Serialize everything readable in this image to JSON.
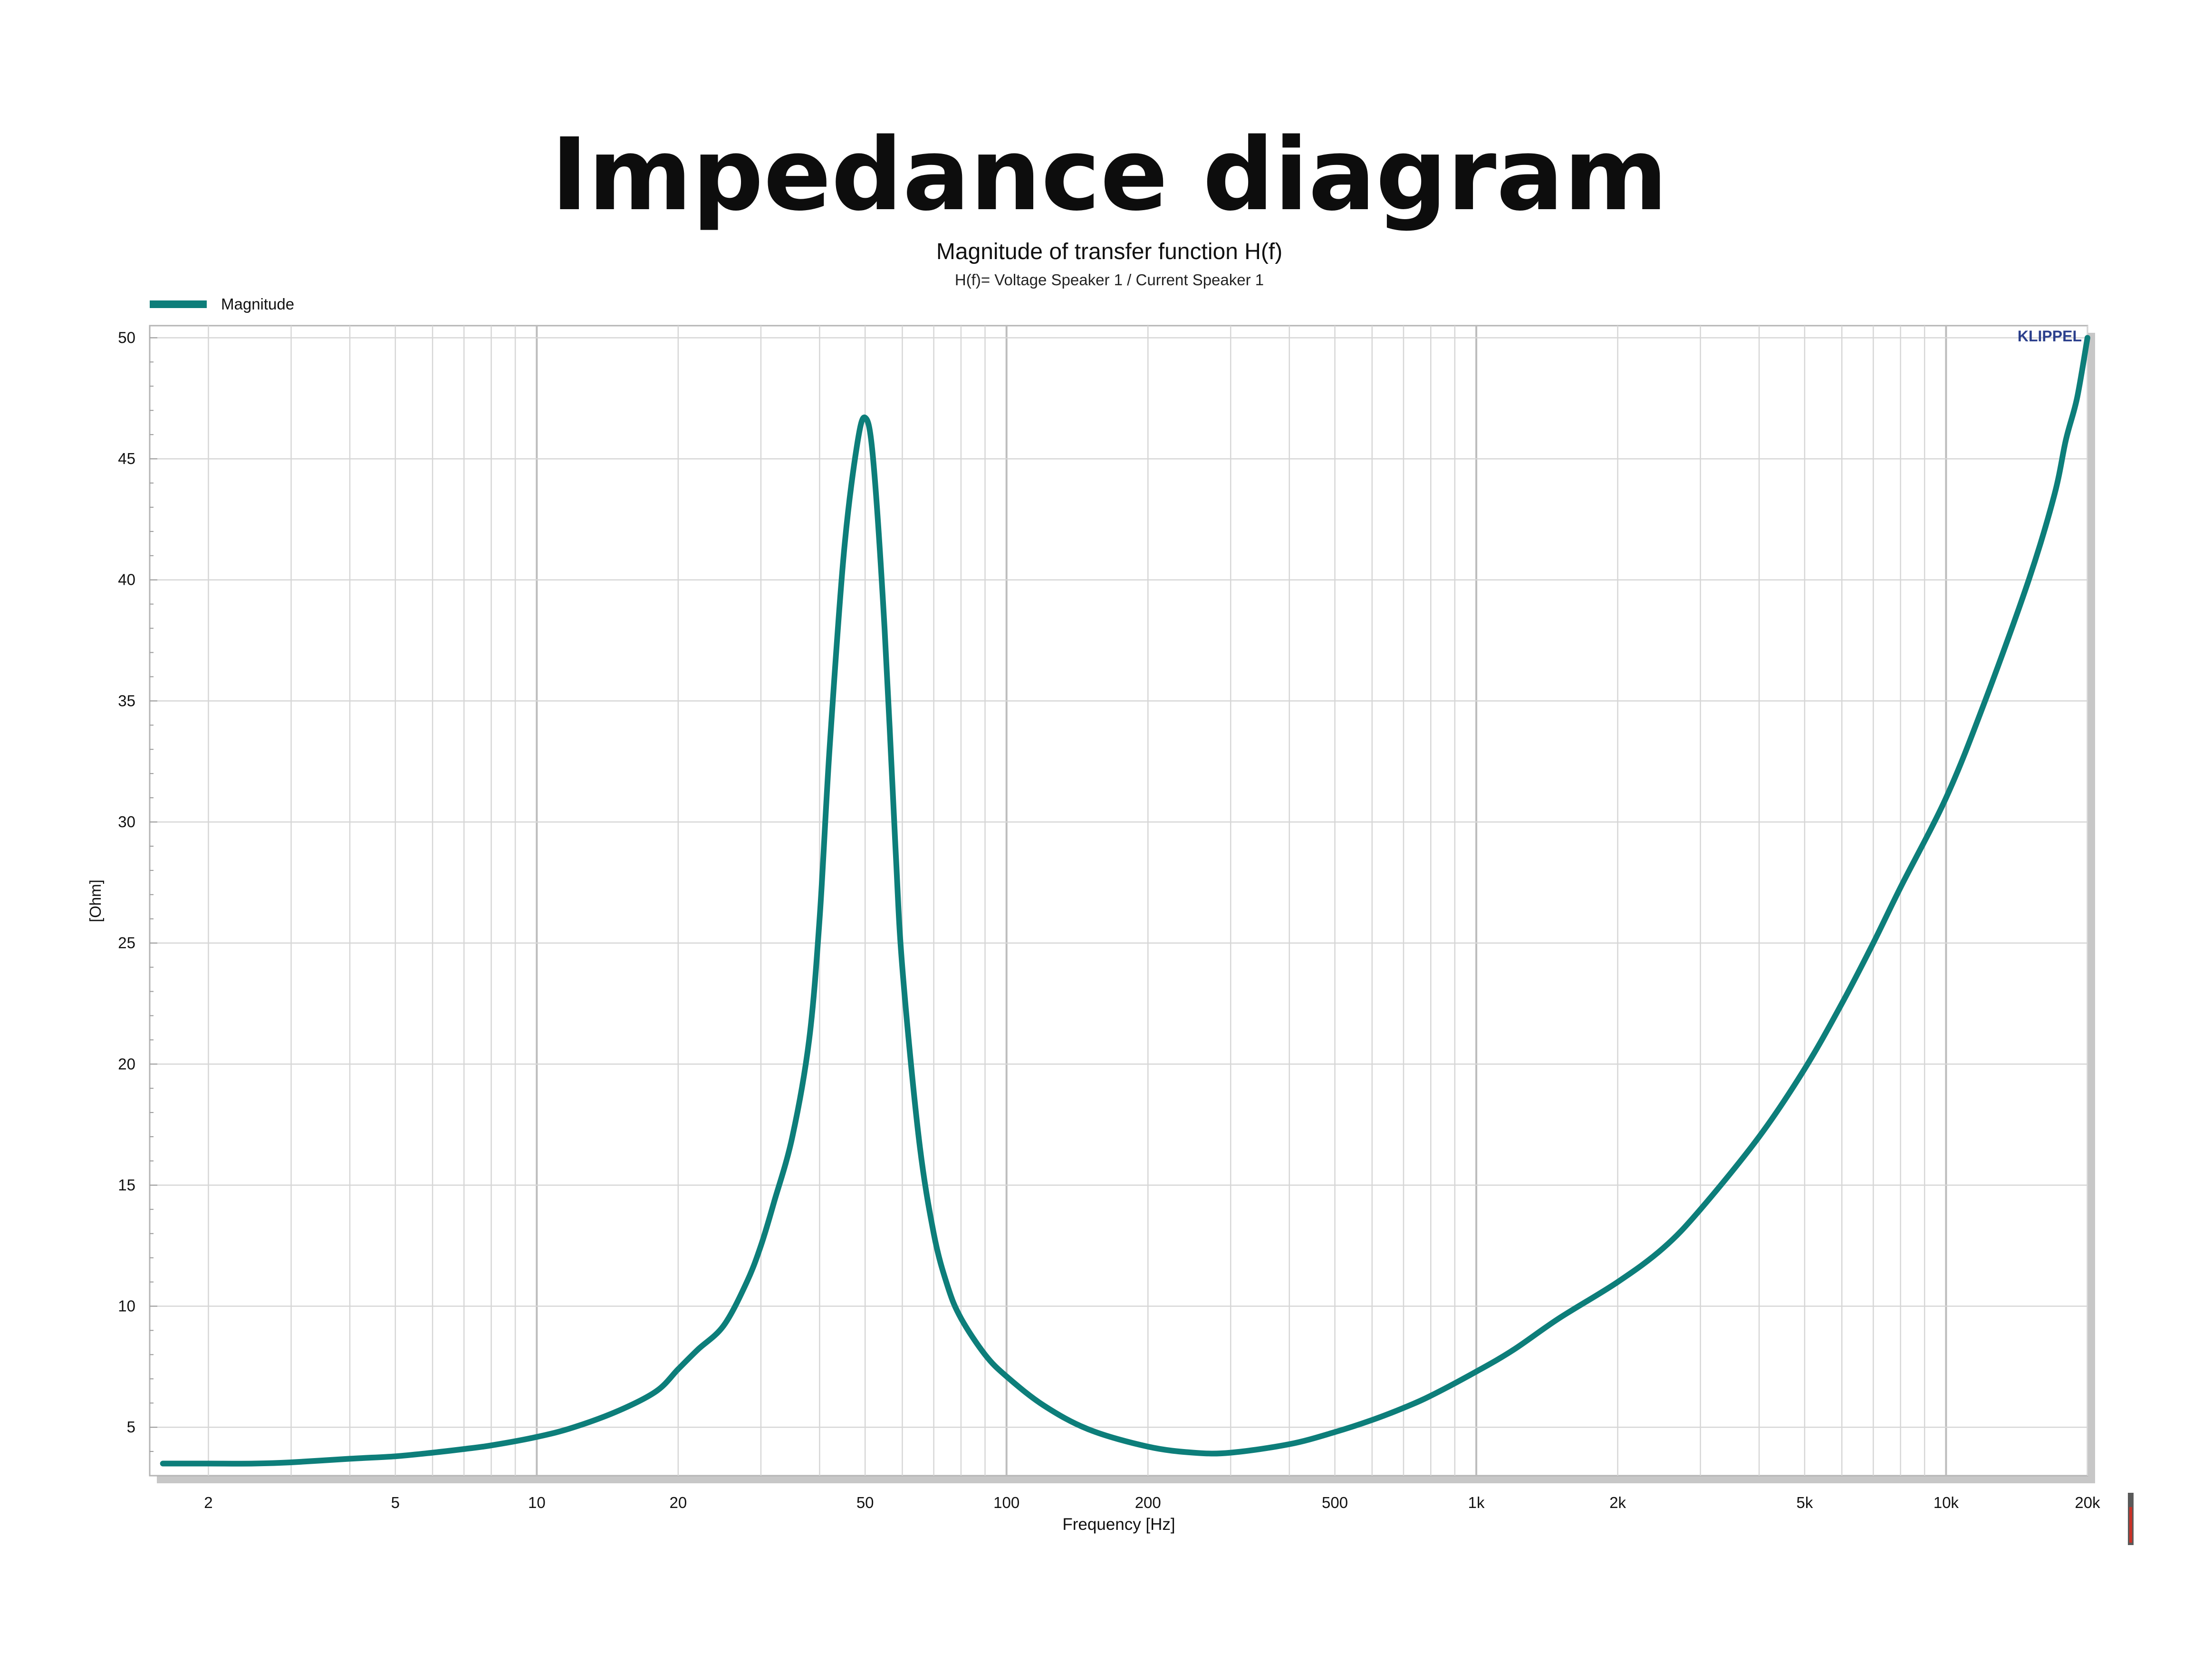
{
  "page": {
    "title": "Impedance diagram"
  },
  "colors": {
    "curve": "#0d7e7a",
    "grid": "#d6d6d6",
    "brand": "#2b3f8c",
    "background": "#ffffff"
  },
  "chart_data": {
    "type": "line",
    "title": "Magnitude of transfer function H(f)",
    "subtitle": "H(f)= Voltage Speaker 1 / Current Speaker 1",
    "xlabel": "Frequency [Hz]",
    "ylabel": "[Ohm]",
    "x_scale": "log",
    "xlim": [
      1.5,
      20000
    ],
    "ylim": [
      3,
      50.5
    ],
    "grid": true,
    "legend": {
      "position": "top-left",
      "entries": [
        "Magnitude"
      ]
    },
    "brand_label": "KLIPPEL",
    "x_ticks": [
      {
        "value": 2,
        "label": "2"
      },
      {
        "value": 5,
        "label": "5"
      },
      {
        "value": 10,
        "label": "10"
      },
      {
        "value": 20,
        "label": "20"
      },
      {
        "value": 50,
        "label": "50"
      },
      {
        "value": 100,
        "label": "100"
      },
      {
        "value": 200,
        "label": "200"
      },
      {
        "value": 500,
        "label": "500"
      },
      {
        "value": 1000,
        "label": "1k"
      },
      {
        "value": 2000,
        "label": "2k"
      },
      {
        "value": 5000,
        "label": "5k"
      },
      {
        "value": 10000,
        "label": "10k"
      },
      {
        "value": 20000,
        "label": "20k"
      }
    ],
    "y_ticks": [
      {
        "value": 5,
        "label": "5"
      },
      {
        "value": 10,
        "label": "10"
      },
      {
        "value": 15,
        "label": "15"
      },
      {
        "value": 20,
        "label": "20"
      },
      {
        "value": 25,
        "label": "25"
      },
      {
        "value": 30,
        "label": "30"
      },
      {
        "value": 35,
        "label": "35"
      },
      {
        "value": 40,
        "label": "40"
      },
      {
        "value": 45,
        "label": "45"
      },
      {
        "value": 50,
        "label": "50"
      }
    ],
    "series": [
      {
        "name": "Magnitude",
        "color": "#0d7e7a",
        "x": [
          1.6,
          2,
          2.5,
          3,
          4,
          5,
          6,
          7,
          8,
          10,
          12,
          15,
          18,
          20,
          22,
          25,
          28,
          30,
          32,
          35,
          38,
          40,
          42,
          45,
          48,
          50,
          52,
          55,
          58,
          60,
          65,
          70,
          75,
          80,
          90,
          100,
          120,
          150,
          200,
          250,
          300,
          400,
          500,
          600,
          700,
          800,
          1000,
          1200,
          1500,
          2000,
          2500,
          3000,
          4000,
          5000,
          6000,
          7000,
          8000,
          10000,
          12000,
          15000,
          17000,
          18000,
          19000,
          20000
        ],
        "y": [
          3.5,
          3.5,
          3.5,
          3.55,
          3.7,
          3.8,
          3.95,
          4.1,
          4.25,
          4.6,
          5.0,
          5.7,
          6.5,
          7.4,
          8.2,
          9.2,
          11.0,
          12.5,
          14.3,
          17.0,
          21.0,
          26.0,
          33.0,
          41.0,
          45.5,
          46.7,
          45.0,
          38.0,
          29.0,
          24.0,
          17.0,
          13.0,
          10.8,
          9.5,
          8.0,
          7.1,
          5.9,
          4.9,
          4.2,
          3.95,
          3.95,
          4.3,
          4.8,
          5.3,
          5.8,
          6.3,
          7.3,
          8.2,
          9.5,
          11.0,
          12.4,
          14.0,
          17.0,
          19.8,
          22.5,
          25.0,
          27.3,
          31.0,
          34.8,
          40.0,
          43.5,
          45.8,
          47.5,
          50.0
        ]
      }
    ]
  }
}
